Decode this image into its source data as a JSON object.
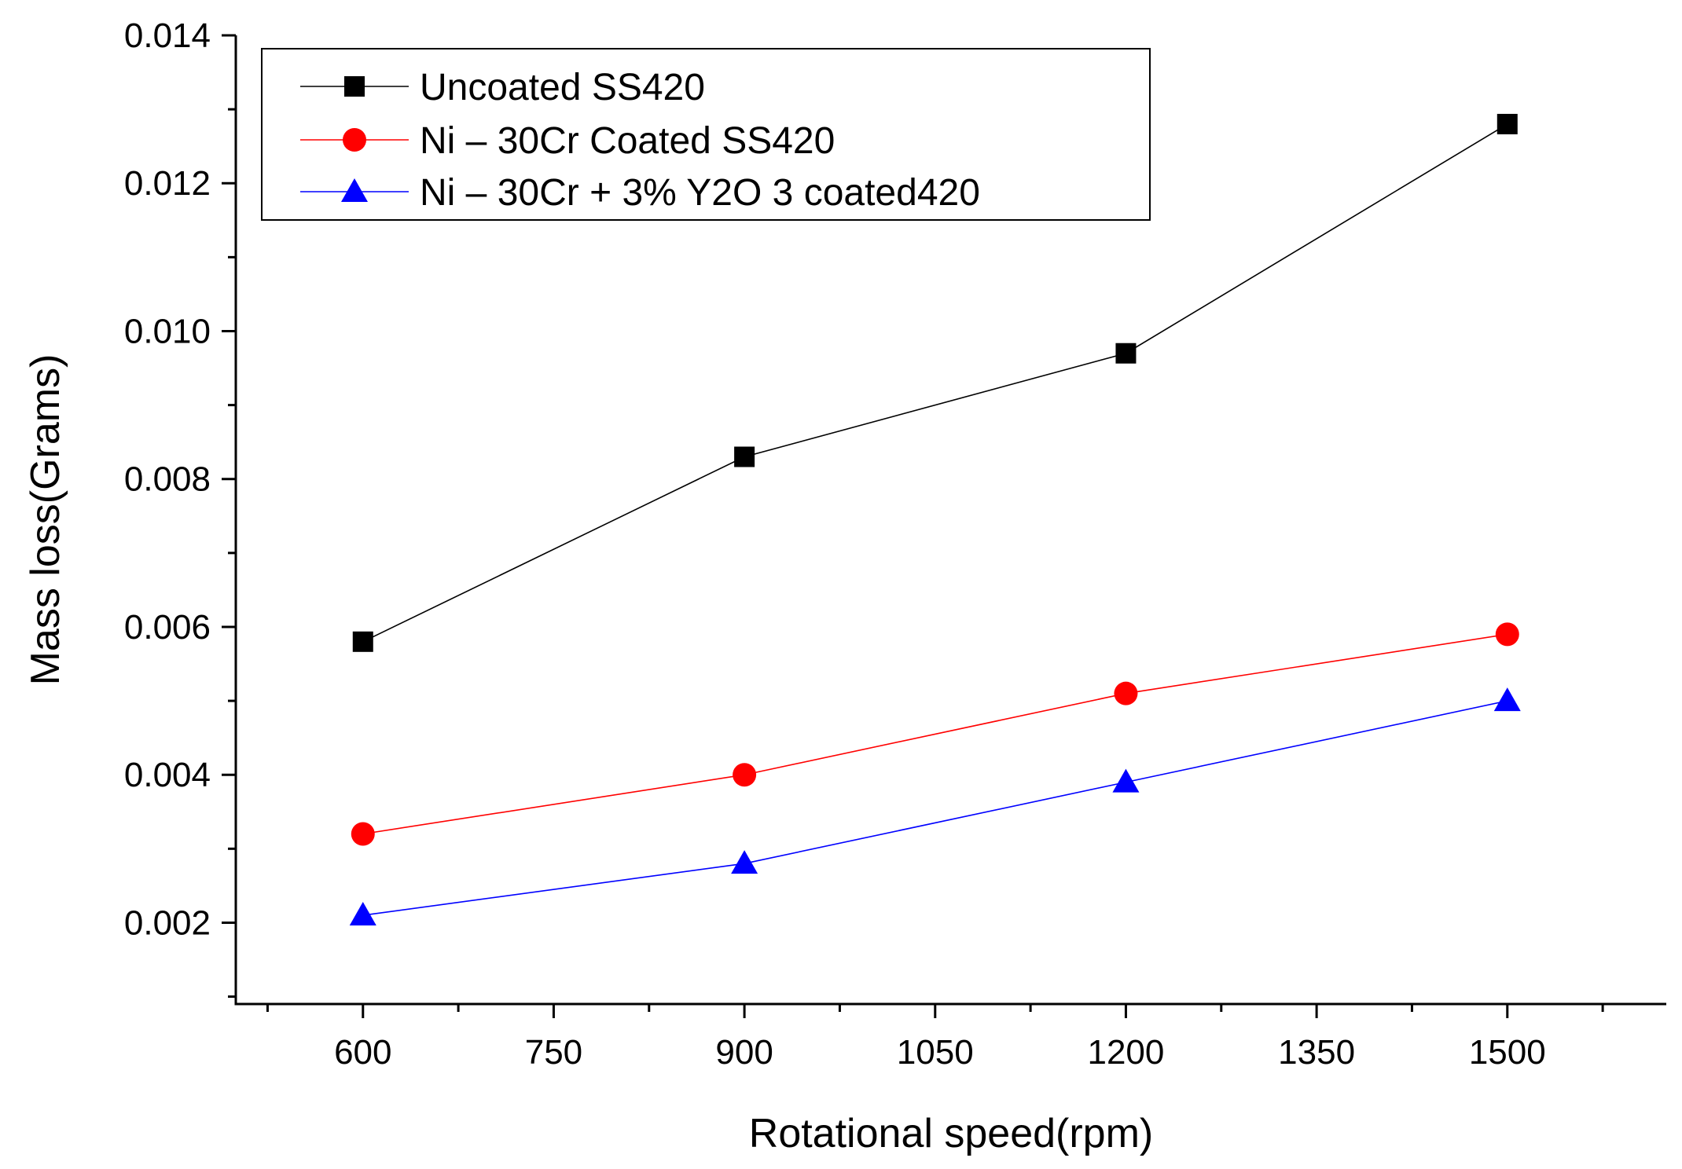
{
  "chart_data": {
    "type": "line",
    "xlabel": "Rotational speed(rpm)",
    "ylabel": "Mass loss(Grams)",
    "xlim": [
      500,
      1625
    ],
    "ylim": [
      0.0009,
      0.014
    ],
    "x_ticks": [
      600,
      750,
      900,
      1050,
      1200,
      1350,
      1500
    ],
    "x_tick_labels": [
      "600",
      "750",
      "900",
      "1050",
      "1200",
      "1350",
      "1500"
    ],
    "y_ticks": [
      0.002,
      0.004,
      0.006,
      0.008,
      0.01,
      0.012,
      0.014
    ],
    "y_tick_labels": [
      "0.002",
      "0.004",
      "0.006",
      "0.008",
      "0.010",
      "0.012",
      "0.014"
    ],
    "grid": false,
    "legend_position": "top-left",
    "x": [
      600,
      900,
      1200,
      1500
    ],
    "series": [
      {
        "name": "Uncoated SS420",
        "values": [
          0.0058,
          0.0083,
          0.0097,
          0.0128
        ],
        "color": "#000000",
        "marker": "square"
      },
      {
        "name": "Ni – 30Cr  Coated SS420",
        "values": [
          0.0032,
          0.004,
          0.0051,
          0.0059
        ],
        "color": "#ff0000",
        "marker": "circle"
      },
      {
        "name": "Ni – 30Cr + 3% Y2O 3 coated420",
        "values": [
          0.0021,
          0.0028,
          0.0039,
          0.005
        ],
        "color": "#0000ff",
        "marker": "triangle"
      }
    ]
  }
}
